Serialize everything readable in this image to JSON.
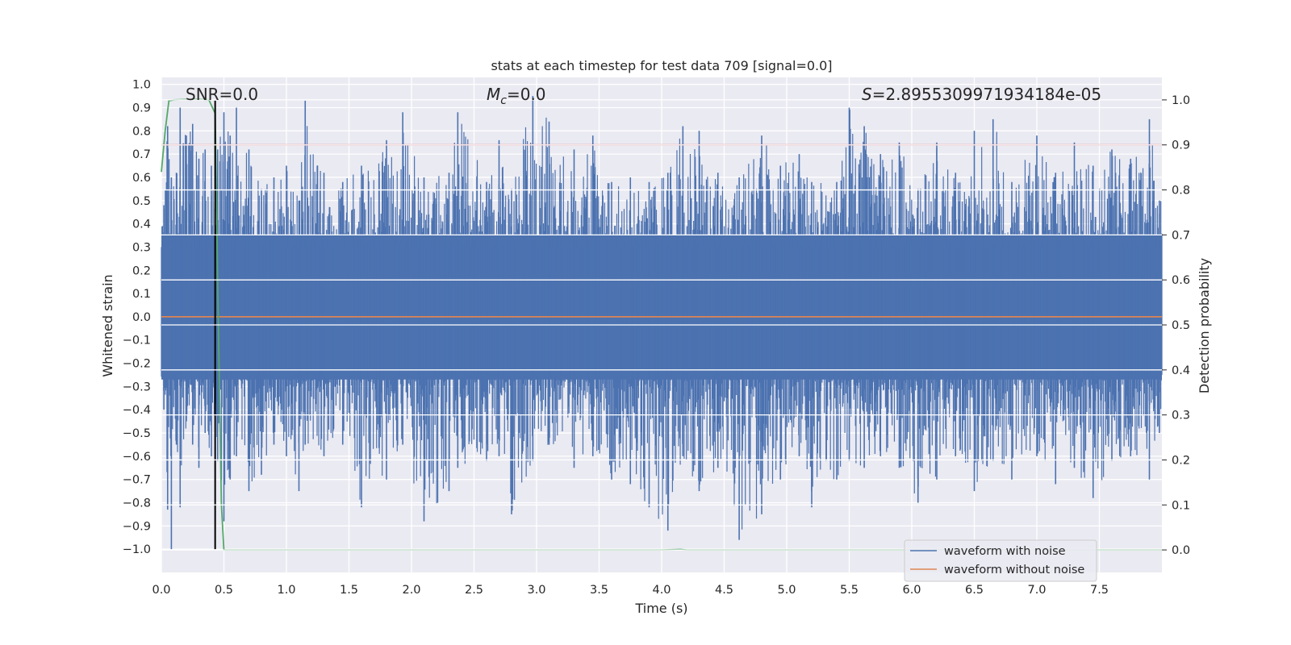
{
  "chart_data": {
    "type": "line",
    "title": "stats at each timestep for test data 709 [signal=0.0]",
    "xlabel": "Time (s)",
    "ylabel": "Whitened strain",
    "y2label": "Detection probability",
    "xlim": [
      0.0,
      8.0
    ],
    "ylim": [
      -1.1,
      1.03
    ],
    "y2lim": [
      -0.05,
      1.05
    ],
    "xticks": [
      0.0,
      0.5,
      1.0,
      1.5,
      2.0,
      2.5,
      3.0,
      3.5,
      4.0,
      4.5,
      5.0,
      5.5,
      6.0,
      6.5,
      7.0,
      7.5
    ],
    "xtick_labels": [
      "0.0",
      "0.5",
      "1.0",
      "1.5",
      "2.0",
      "2.5",
      "3.0",
      "3.5",
      "4.0",
      "4.5",
      "5.0",
      "5.5",
      "6.0",
      "6.5",
      "7.0",
      "7.5"
    ],
    "yticks": [
      1.0,
      0.9,
      0.8,
      0.7,
      0.6,
      0.5,
      0.4,
      0.3,
      0.2,
      0.1,
      0.0,
      -0.1,
      -0.2,
      -0.3,
      -0.4,
      -0.5,
      -0.6,
      -0.7,
      -0.8,
      -0.9,
      -1.0
    ],
    "ytick_labels": [
      "1.0",
      "0.9",
      "0.8",
      "0.7",
      "0.6",
      "0.5",
      "0.4",
      "0.3",
      "0.2",
      "0.1",
      "0.0",
      "−0.1",
      "−0.2",
      "−0.3",
      "−0.4",
      "−0.5",
      "−0.6",
      "−0.7",
      "−0.8",
      "−0.9",
      "−1.0"
    ],
    "y2ticks": [
      1.0,
      0.9,
      0.8,
      0.7,
      0.6,
      0.5,
      0.4,
      0.3,
      0.2,
      0.1,
      0.0
    ],
    "y2tick_labels": [
      "1.0",
      "0.9",
      "0.8",
      "0.7",
      "0.6",
      "0.5",
      "0.4",
      "0.3",
      "0.2",
      "0.1",
      "0.0"
    ],
    "annotations": {
      "snr": "SNR=0.0",
      "mc_symbol": "M",
      "mc_sub": "c",
      "mc_value": "=0.0",
      "s_symbol": "S",
      "s_value": "=2.8955309971934184e-05"
    },
    "threshold": {
      "value": 0.9,
      "axis": "right",
      "color": "#c44e52"
    },
    "event_marker": {
      "x": 0.43,
      "color": "#000000"
    },
    "series": [
      {
        "name": "waveform with noise",
        "color": "#4c72b0",
        "axis": "left",
        "core_band": [
          -0.27,
          0.35
        ],
        "peak_samples": [
          [
            0.02,
            0.48,
            -0.4
          ],
          [
            0.05,
            0.82,
            -0.83
          ],
          [
            0.08,
            0.6,
            -1.0
          ],
          [
            0.12,
            0.62,
            -0.55
          ],
          [
            0.15,
            0.9,
            -0.82
          ],
          [
            0.2,
            0.78,
            -0.45
          ],
          [
            0.25,
            0.83,
            -0.55
          ],
          [
            0.3,
            0.68,
            -0.65
          ],
          [
            0.35,
            0.72,
            -0.5
          ],
          [
            0.4,
            0.65,
            -0.6
          ],
          [
            0.45,
            0.72,
            -0.62
          ],
          [
            0.5,
            0.88,
            -0.88
          ],
          [
            0.55,
            0.78,
            -0.7
          ],
          [
            0.6,
            0.9,
            -0.6
          ],
          [
            0.7,
            0.72,
            -0.75
          ],
          [
            0.8,
            0.55,
            -0.68
          ],
          [
            0.9,
            0.6,
            -0.55
          ],
          [
            1.0,
            0.65,
            -0.6
          ],
          [
            1.1,
            0.5,
            -0.75
          ],
          [
            1.15,
            0.93,
            -0.55
          ],
          [
            1.3,
            0.62,
            -0.6
          ],
          [
            1.45,
            0.58,
            -0.55
          ],
          [
            1.6,
            0.65,
            -0.82
          ],
          [
            1.8,
            0.76,
            -0.7
          ],
          [
            1.93,
            0.88,
            -0.55
          ],
          [
            2.1,
            0.6,
            -0.88
          ],
          [
            2.3,
            0.62,
            -0.75
          ],
          [
            2.37,
            0.88,
            -0.65
          ],
          [
            2.6,
            0.58,
            -0.62
          ],
          [
            2.7,
            0.76,
            -0.6
          ],
          [
            2.8,
            0.55,
            -0.85
          ],
          [
            2.97,
            0.95,
            -0.62
          ],
          [
            3.1,
            0.84,
            -0.55
          ],
          [
            3.3,
            0.72,
            -0.65
          ],
          [
            3.45,
            0.78,
            -0.6
          ],
          [
            3.6,
            0.58,
            -0.7
          ],
          [
            3.75,
            0.6,
            -0.72
          ],
          [
            3.9,
            0.58,
            -0.82
          ],
          [
            4.05,
            0.62,
            -0.92
          ],
          [
            4.17,
            0.82,
            -0.6
          ],
          [
            4.3,
            0.8,
            -0.75
          ],
          [
            4.45,
            0.62,
            -0.65
          ],
          [
            4.62,
            0.6,
            -0.96
          ],
          [
            4.8,
            0.78,
            -0.85
          ],
          [
            4.95,
            0.65,
            -0.7
          ],
          [
            5.1,
            0.7,
            -0.6
          ],
          [
            5.2,
            0.58,
            -0.82
          ],
          [
            5.4,
            0.58,
            -0.7
          ],
          [
            5.5,
            0.9,
            -0.62
          ],
          [
            5.62,
            0.82,
            -0.65
          ],
          [
            5.75,
            0.7,
            -0.6
          ],
          [
            5.9,
            0.75,
            -0.65
          ],
          [
            6.05,
            0.55,
            -0.8
          ],
          [
            6.2,
            0.75,
            -0.7
          ],
          [
            6.35,
            0.62,
            -0.6
          ],
          [
            6.5,
            0.8,
            -0.75
          ],
          [
            6.65,
            0.85,
            -0.62
          ],
          [
            6.8,
            0.58,
            -0.7
          ],
          [
            7.0,
            0.78,
            -0.6
          ],
          [
            7.15,
            0.62,
            -0.72
          ],
          [
            7.3,
            0.75,
            -0.65
          ],
          [
            7.45,
            0.65,
            -0.78
          ],
          [
            7.6,
            0.72,
            -0.62
          ],
          [
            7.75,
            0.68,
            -0.6
          ],
          [
            7.9,
            0.85,
            -0.7
          ],
          [
            7.98,
            0.5,
            -0.5
          ]
        ]
      },
      {
        "name": "waveform without noise",
        "color": "#dd8452",
        "axis": "left",
        "x": [
          0.0,
          8.0
        ],
        "y": [
          0.0,
          0.0
        ]
      },
      {
        "name": "detection probability",
        "color": "#55a868",
        "axis": "right",
        "x": [
          0.0,
          0.03,
          0.06,
          0.1,
          0.2,
          0.3,
          0.38,
          0.43,
          0.45,
          0.48,
          0.5,
          1.0,
          2.0,
          3.0,
          4.0,
          4.15,
          4.2,
          5.0,
          6.0,
          7.0,
          8.0
        ],
        "y": [
          0.84,
          0.93,
          0.998,
          1.0,
          1.001,
          1.001,
          1.0,
          0.97,
          0.6,
          0.1,
          0.0,
          0.0,
          0.0,
          0.0,
          0.0,
          0.001,
          0.0,
          0.0,
          0.0,
          0.0,
          0.0
        ]
      }
    ],
    "legend": {
      "position": "lower-right",
      "entries": [
        {
          "label": "waveform with noise",
          "color": "#4c72b0"
        },
        {
          "label": "waveform without noise",
          "color": "#dd8452"
        }
      ]
    }
  }
}
